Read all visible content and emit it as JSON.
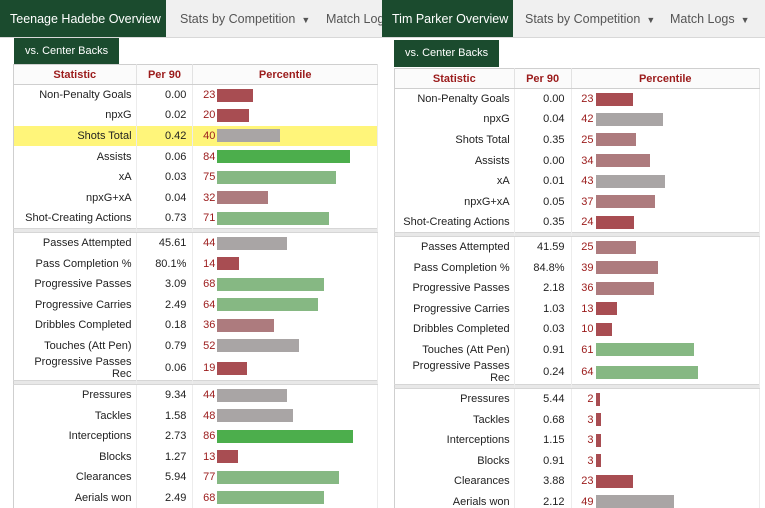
{
  "left": {
    "tabs": [
      {
        "label": "Teenage Hadebe Overview",
        "active": true
      },
      {
        "label": "Stats by Competition",
        "caret": "▼"
      },
      {
        "label": "Match Logs",
        "caret": ""
      }
    ],
    "subtab": "vs. Center Backs",
    "headers": {
      "statistic": "Statistic",
      "per90": "Per 90",
      "percentile": "Percentile"
    },
    "groups": [
      [
        {
          "stat": "Non-Penalty Goals",
          "per90": "0.00",
          "pct": 23
        },
        {
          "stat": "npxG",
          "per90": "0.02",
          "pct": 20
        },
        {
          "stat": "Shots Total",
          "per90": "0.42",
          "pct": 40,
          "highlight": true
        },
        {
          "stat": "Assists",
          "per90": "0.06",
          "pct": 84
        },
        {
          "stat": "xA",
          "per90": "0.03",
          "pct": 75
        },
        {
          "stat": "npxG+xA",
          "per90": "0.04",
          "pct": 32
        },
        {
          "stat": "Shot-Creating Actions",
          "per90": "0.73",
          "pct": 71
        }
      ],
      [
        {
          "stat": "Passes Attempted",
          "per90": "45.61",
          "pct": 44
        },
        {
          "stat": "Pass Completion %",
          "per90": "80.1%",
          "pct": 14
        },
        {
          "stat": "Progressive Passes",
          "per90": "3.09",
          "pct": 68
        },
        {
          "stat": "Progressive Carries",
          "per90": "2.49",
          "pct": 64
        },
        {
          "stat": "Dribbles Completed",
          "per90": "0.18",
          "pct": 36
        },
        {
          "stat": "Touches (Att Pen)",
          "per90": "0.79",
          "pct": 52
        },
        {
          "stat": "Progressive Passes Rec",
          "per90": "0.06",
          "pct": 19
        }
      ],
      [
        {
          "stat": "Pressures",
          "per90": "9.34",
          "pct": 44
        },
        {
          "stat": "Tackles",
          "per90": "1.58",
          "pct": 48
        },
        {
          "stat": "Interceptions",
          "per90": "2.73",
          "pct": 86
        },
        {
          "stat": "Blocks",
          "per90": "1.27",
          "pct": 13
        },
        {
          "stat": "Clearances",
          "per90": "5.94",
          "pct": 77
        },
        {
          "stat": "Aerials won",
          "per90": "2.49",
          "pct": 68
        }
      ]
    ]
  },
  "right": {
    "tabs": [
      {
        "label": "Tim Parker Overview",
        "active": true
      },
      {
        "label": "Stats by Competition",
        "caret": "▼"
      },
      {
        "label": "Match Logs",
        "caret": "▼"
      }
    ],
    "subtab": "vs. Center Backs",
    "headers": {
      "statistic": "Statistic",
      "per90": "Per 90",
      "percentile": "Percentile"
    },
    "groups": [
      [
        {
          "stat": "Non-Penalty Goals",
          "per90": "0.00",
          "pct": 23
        },
        {
          "stat": "npxG",
          "per90": "0.04",
          "pct": 42
        },
        {
          "stat": "Shots Total",
          "per90": "0.35",
          "pct": 25
        },
        {
          "stat": "Assists",
          "per90": "0.00",
          "pct": 34
        },
        {
          "stat": "xA",
          "per90": "0.01",
          "pct": 43
        },
        {
          "stat": "npxG+xA",
          "per90": "0.05",
          "pct": 37
        },
        {
          "stat": "Shot-Creating Actions",
          "per90": "0.35",
          "pct": 24
        }
      ],
      [
        {
          "stat": "Passes Attempted",
          "per90": "41.59",
          "pct": 25
        },
        {
          "stat": "Pass Completion %",
          "per90": "84.8%",
          "pct": 39
        },
        {
          "stat": "Progressive Passes",
          "per90": "2.18",
          "pct": 36
        },
        {
          "stat": "Progressive Carries",
          "per90": "1.03",
          "pct": 13
        },
        {
          "stat": "Dribbles Completed",
          "per90": "0.03",
          "pct": 10
        },
        {
          "stat": "Touches (Att Pen)",
          "per90": "0.91",
          "pct": 61
        },
        {
          "stat": "Progressive Passes Rec",
          "per90": "0.24",
          "pct": 64
        }
      ],
      [
        {
          "stat": "Pressures",
          "per90": "5.44",
          "pct": 2
        },
        {
          "stat": "Tackles",
          "per90": "0.68",
          "pct": 3
        },
        {
          "stat": "Interceptions",
          "per90": "1.15",
          "pct": 3
        },
        {
          "stat": "Blocks",
          "per90": "0.91",
          "pct": 3
        },
        {
          "stat": "Clearances",
          "per90": "3.88",
          "pct": 23
        },
        {
          "stat": "Aerials won",
          "per90": "2.12",
          "pct": 49
        }
      ]
    ]
  },
  "colors": {
    "header_green": "#1b4b2e",
    "header_text_red": "#9b1b1b",
    "highlight": "#fff57a",
    "bar_low": "#b05a5f",
    "bar_mid": "#a8a8a8",
    "bar_high": "#5cb85c"
  }
}
